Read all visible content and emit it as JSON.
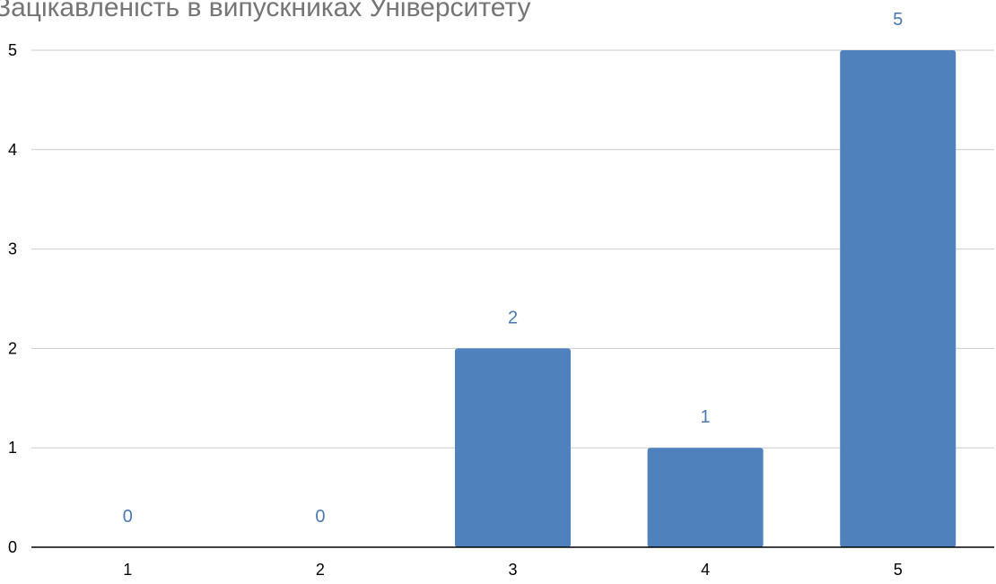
{
  "chart_data": {
    "type": "bar",
    "title": "Зацікавленість в випускниках Університету",
    "categories": [
      "1",
      "2",
      "3",
      "4",
      "5"
    ],
    "values": [
      0,
      0,
      2,
      1,
      5
    ],
    "data_labels": [
      "0",
      "0",
      "2",
      "1",
      "5"
    ],
    "xlabel": "",
    "ylabel": "",
    "ylim": [
      0,
      5
    ],
    "y_ticks": [
      "0",
      "1",
      "2",
      "3",
      "4",
      "5"
    ],
    "grid": true,
    "legend": "none",
    "colors": {
      "bar": "#4F81BD",
      "data_label": "#4A78B5",
      "gridline": "#CCCCCC",
      "axis_line": "#000000",
      "title": "#757575",
      "tick_label": "#000000"
    }
  }
}
